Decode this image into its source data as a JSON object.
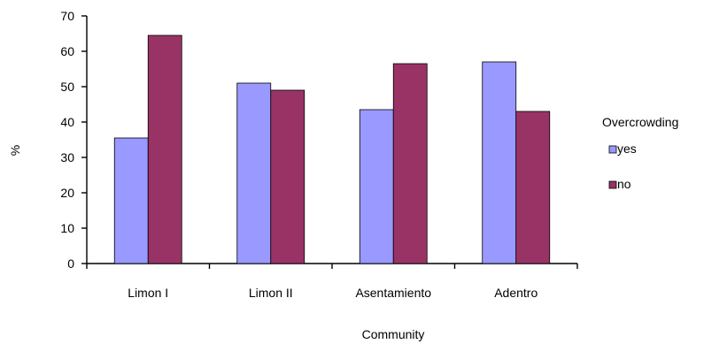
{
  "chart_data": {
    "type": "bar",
    "categories": [
      "Limon I",
      "Limon II",
      "Asentamiento",
      "Adentro"
    ],
    "series": [
      {
        "name": "yes",
        "values": [
          35.5,
          51,
          43.5,
          57
        ],
        "color": "#9999ff"
      },
      {
        "name": "no",
        "values": [
          64.5,
          49,
          56.5,
          43
        ],
        "color": "#993366"
      }
    ],
    "title": "",
    "xlabel": "Community",
    "ylabel": "%",
    "ylim": [
      0,
      70
    ],
    "yticks": [
      0,
      10,
      20,
      30,
      40,
      50,
      60,
      70
    ],
    "legend_title": "Overcrowding",
    "legend_position": "right",
    "grid": false
  }
}
